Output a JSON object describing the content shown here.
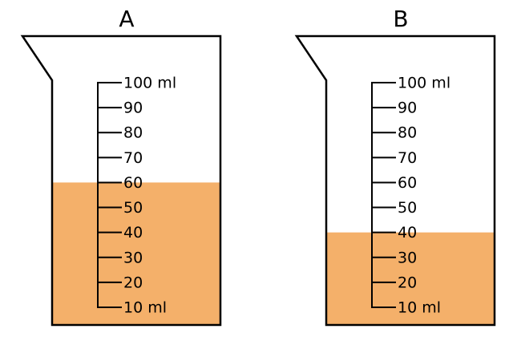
{
  "beakers": [
    {
      "label": "A",
      "level": 60
    },
    {
      "label": "B",
      "level": 40
    }
  ],
  "scale": {
    "ticks": [
      {
        "value": 100,
        "label": "100 ml"
      },
      90,
      80,
      70,
      60,
      50,
      40,
      30,
      20,
      {
        "value": 10,
        "label": "10 ml"
      }
    ]
  },
  "liquid_color": "#f4b06a"
}
